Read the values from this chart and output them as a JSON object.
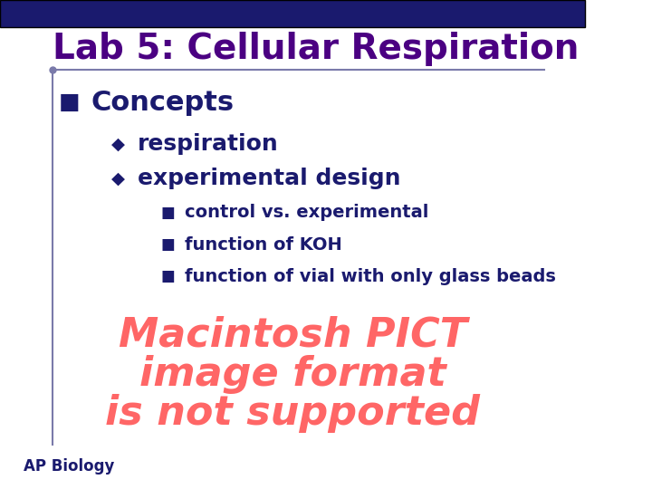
{
  "title": "Lab 5: Cellular Respiration",
  "title_color": "#4B0082",
  "title_fontsize": 28,
  "bg_color": "#FFFFFF",
  "top_bar_color": "#1a1a6e",
  "top_bar_height": 0.055,
  "vertical_line_color": "#7a7aaa",
  "bullet1_text": "Concepts",
  "bullet1_color": "#1a1a6e",
  "bullet1_fontsize": 22,
  "bullet1_marker": "■",
  "sub_bullet_color": "#1a1a6e",
  "sub_bullet_fontsize": 18,
  "sub_bullet_marker": "◆",
  "sub_bullets": [
    "respiration",
    "experimental design"
  ],
  "sub_sub_bullet_color": "#1a1a6e",
  "sub_sub_bullet_fontsize": 14,
  "sub_sub_bullet_marker": "■",
  "sub_sub_bullets": [
    "control vs. experimental",
    "function of KOH",
    "function of vial with only glass beads"
  ],
  "pict_line1": "Macintosh PICT",
  "pict_line2": "image format",
  "pict_line3": "is not supported",
  "pict_color": "#FF6666",
  "pict_fontsize": 32,
  "footer_text": "AP Biology",
  "footer_color": "#1a1a6e",
  "footer_fontsize": 12,
  "underline_color": "#7a7aaa"
}
